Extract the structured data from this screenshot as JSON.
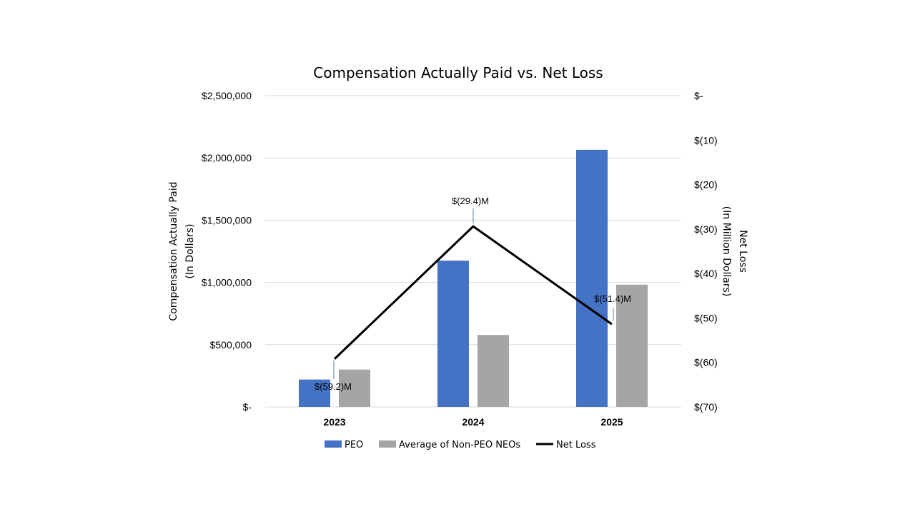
{
  "chart_data": {
    "type": "bar",
    "title": "Compensation Actually Paid vs. Net Loss",
    "categories": [
      "2023",
      "2024",
      "2025"
    ],
    "series": [
      {
        "name": "PEO",
        "axis": "left",
        "kind": "bar",
        "color": "#4472C4",
        "values": [
          220000,
          1175000,
          2065000
        ]
      },
      {
        "name": "Average of Non-PEO NEOs",
        "axis": "left",
        "kind": "bar",
        "color": "#A5A5A5",
        "values": [
          300000,
          578000,
          982000
        ]
      },
      {
        "name": "Net Loss",
        "axis": "right",
        "kind": "line",
        "color": "#000000",
        "values": [
          -59.2,
          -29.4,
          -51.4
        ]
      }
    ],
    "data_labels": [
      "$(59.2)M",
      "$(29.4)M",
      "$(51.4)M"
    ],
    "left_axis": {
      "label_line1": "Compensation Actually Paid",
      "label_line2": "(In Dollars)",
      "ylim": [
        0,
        2500000
      ],
      "ticks": [
        0,
        500000,
        1000000,
        1500000,
        2000000,
        2500000
      ],
      "tick_labels": [
        "$-",
        "$500,000",
        "$1,000,000",
        "$1,500,000",
        "$2,000,000",
        "$2,500,000"
      ]
    },
    "right_axis": {
      "label_line1": "Net Loss",
      "label_line2": "(In Million Dollars)",
      "ylim": [
        -70,
        0
      ],
      "ticks": [
        0,
        -10,
        -20,
        -30,
        -40,
        -50,
        -60,
        -70
      ],
      "tick_labels": [
        "$-",
        "$(10)",
        "$(20)",
        "$(30)",
        "$(40)",
        "$(50)",
        "$(60)",
        "$(70)"
      ]
    },
    "grid": true,
    "legend_position": "bottom-center"
  }
}
